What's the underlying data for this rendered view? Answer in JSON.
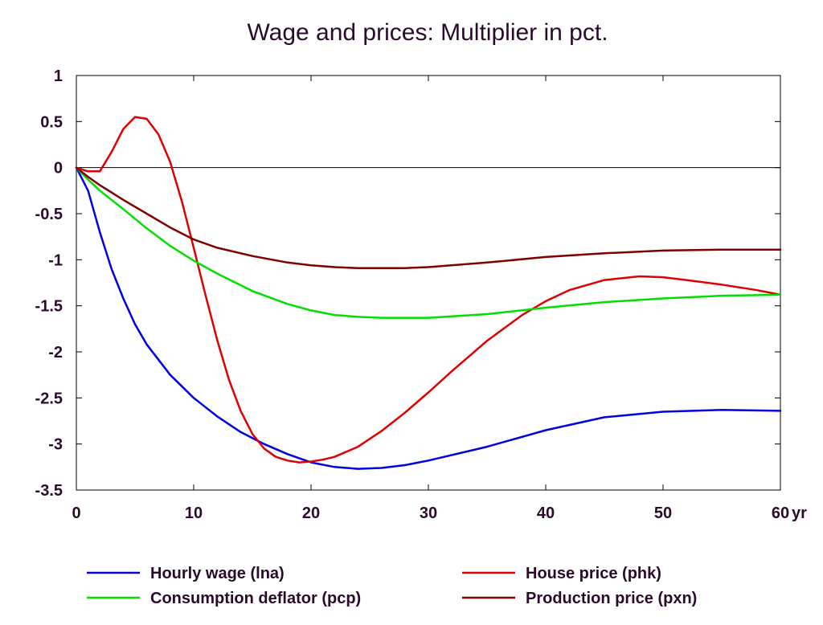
{
  "chart_data": {
    "type": "line",
    "title": "Wage and prices: Multiplier in pct.",
    "x_unit_label": "yr",
    "xlim": [
      0,
      60
    ],
    "ylim": [
      -3.5,
      1
    ],
    "x_ticks": [
      0,
      10,
      20,
      30,
      40,
      50,
      60
    ],
    "x_tick_labels": [
      "0",
      "10",
      "20",
      "30",
      "40",
      "50",
      "60"
    ],
    "y_ticks": [
      1,
      0.5,
      0,
      -0.5,
      -1,
      -1.5,
      -2,
      -2.5,
      -3,
      -3.5
    ],
    "y_tick_labels": [
      "1",
      "0.5",
      "0",
      "-0.5",
      "-1",
      "-1.5",
      "-2",
      "-2.5",
      "-3",
      "-3.5"
    ],
    "zero_line": true,
    "grid": false,
    "legend_position": "bottom",
    "series": [
      {
        "name": "Hourly wage (lna)",
        "color": "#0000e0",
        "x": [
          0,
          1,
          2,
          3,
          4,
          5,
          6,
          8,
          10,
          12,
          14,
          16,
          18,
          20,
          22,
          24,
          26,
          28,
          30,
          35,
          40,
          45,
          50,
          55,
          60
        ],
        "y": [
          0,
          -0.25,
          -0.7,
          -1.1,
          -1.42,
          -1.7,
          -1.92,
          -2.25,
          -2.5,
          -2.7,
          -2.87,
          -3.0,
          -3.11,
          -3.2,
          -3.25,
          -3.27,
          -3.26,
          -3.23,
          -3.18,
          -3.03,
          -2.85,
          -2.71,
          -2.65,
          -2.63,
          -2.64
        ]
      },
      {
        "name": "House price (phk)",
        "color": "#e00000",
        "x": [
          0,
          1,
          2,
          3,
          4,
          5,
          6,
          7,
          8,
          9,
          10,
          11,
          12,
          13,
          14,
          15,
          16,
          17,
          18,
          19,
          20,
          21,
          22,
          24,
          26,
          28,
          30,
          32,
          35,
          38,
          40,
          42,
          45,
          48,
          50,
          52,
          55,
          58,
          60
        ],
        "y": [
          0,
          -0.04,
          -0.04,
          0.17,
          0.42,
          0.55,
          0.53,
          0.36,
          0.06,
          -0.37,
          -0.87,
          -1.38,
          -1.87,
          -2.3,
          -2.64,
          -2.89,
          -3.05,
          -3.14,
          -3.18,
          -3.2,
          -3.19,
          -3.17,
          -3.14,
          -3.03,
          -2.86,
          -2.66,
          -2.44,
          -2.21,
          -1.88,
          -1.6,
          -1.45,
          -1.33,
          -1.22,
          -1.18,
          -1.19,
          -1.22,
          -1.27,
          -1.33,
          -1.38
        ]
      },
      {
        "name": "Consumption deflator (pcp)",
        "color": "#00e000",
        "x": [
          0,
          1,
          2,
          3,
          4,
          6,
          8,
          10,
          12,
          15,
          18,
          20,
          22,
          24,
          26,
          28,
          30,
          35,
          40,
          45,
          50,
          55,
          60
        ],
        "y": [
          0,
          -0.13,
          -0.25,
          -0.35,
          -0.45,
          -0.66,
          -0.85,
          -1.01,
          -1.15,
          -1.34,
          -1.48,
          -1.55,
          -1.6,
          -1.62,
          -1.63,
          -1.63,
          -1.63,
          -1.59,
          -1.52,
          -1.46,
          -1.42,
          -1.39,
          -1.38
        ]
      },
      {
        "name": "Production price (pxn)",
        "color": "#800000",
        "x": [
          0,
          1,
          2,
          3,
          4,
          6,
          8,
          10,
          12,
          15,
          18,
          20,
          22,
          24,
          26,
          28,
          30,
          35,
          40,
          45,
          50,
          55,
          60
        ],
        "y": [
          0,
          -0.1,
          -0.19,
          -0.27,
          -0.35,
          -0.5,
          -0.65,
          -0.78,
          -0.87,
          -0.96,
          -1.03,
          -1.06,
          -1.08,
          -1.09,
          -1.09,
          -1.09,
          -1.08,
          -1.03,
          -0.97,
          -0.93,
          -0.9,
          -0.89,
          -0.89
        ]
      }
    ]
  }
}
